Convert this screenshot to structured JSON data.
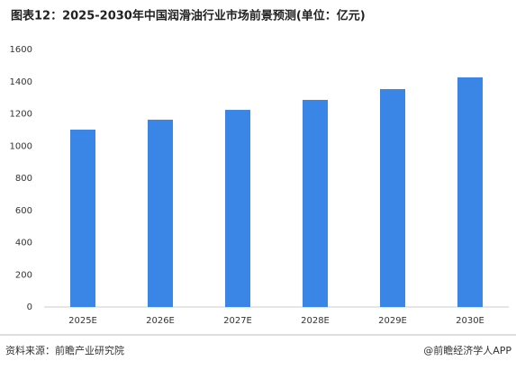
{
  "chart_data": {
    "type": "bar",
    "title": "图表12：2025-2030年中国润滑油行业市场前景预测(单位：亿元)",
    "categories": [
      "2025E",
      "2026E",
      "2027E",
      "2028E",
      "2029E",
      "2030E"
    ],
    "values": [
      1102,
      1164,
      1225,
      1287,
      1354,
      1427
    ],
    "color": "#3a86e6",
    "ylim": [
      0,
      1600
    ],
    "yticks": [
      0,
      200,
      400,
      600,
      800,
      1000,
      1200,
      1400,
      1600
    ],
    "grid": false
  },
  "source": "资料来源：前瞻产业研究院",
  "credit": "@前瞻经济学人APP"
}
